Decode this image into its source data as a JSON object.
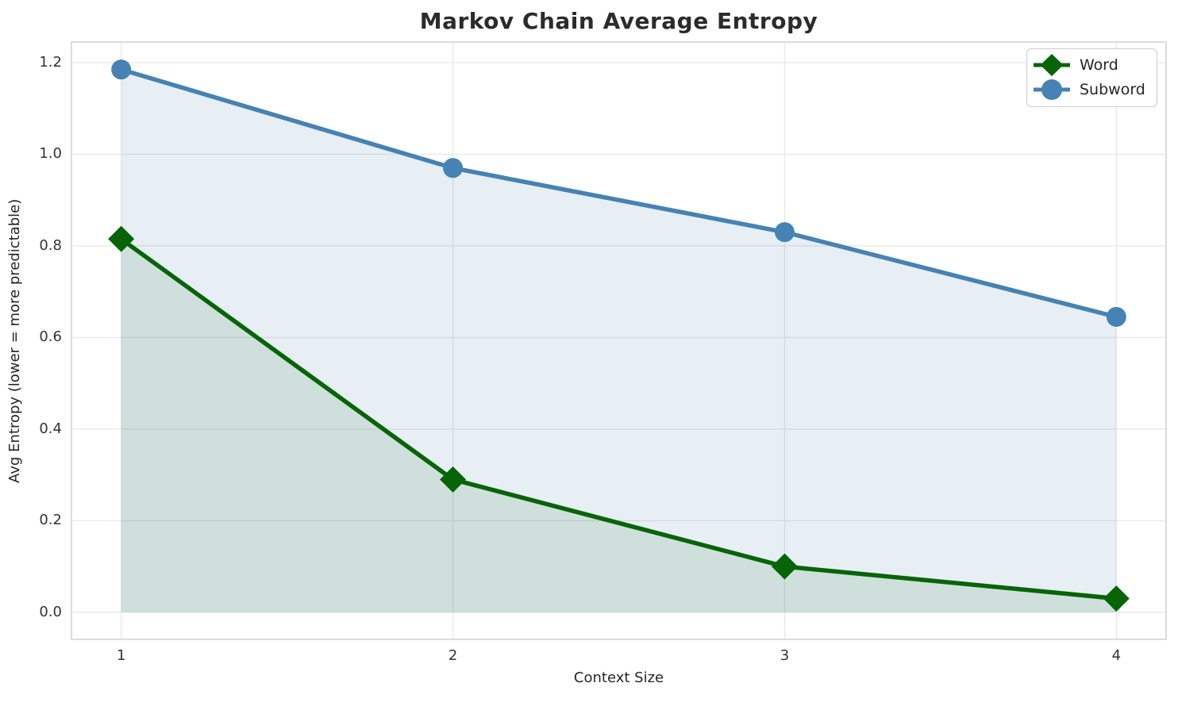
{
  "chart_data": {
    "type": "line",
    "title": "Markov Chain Average Entropy",
    "xlabel": "Context Size",
    "ylabel": "Avg Entropy (lower = more predictable)",
    "x": [
      1,
      2,
      3,
      4
    ],
    "series": [
      {
        "name": "Word",
        "values": [
          0.815,
          0.29,
          0.1,
          0.03
        ],
        "color": "#086408",
        "marker": "diamond",
        "fill_to_zero": true,
        "fill_color": "rgba(0,100,0,0.10)"
      },
      {
        "name": "Subword",
        "values": [
          1.185,
          0.97,
          0.83,
          0.645
        ],
        "color": "#4682b4",
        "marker": "circle",
        "fill_to_zero": true,
        "fill_color": "rgba(70,130,180,0.13)"
      }
    ],
    "xticks": [
      1,
      2,
      3,
      4
    ],
    "xtick_labels": [
      "1",
      "2",
      "3",
      "4"
    ],
    "yticks": [
      0,
      0.2,
      0.4,
      0.6,
      0.8,
      1.0,
      1.2
    ],
    "ytick_labels": [
      "0.0",
      "0.2",
      "0.4",
      "0.6",
      "0.8",
      "1.0",
      "1.2"
    ],
    "xlim": [
      0.85,
      4.15
    ],
    "ylim": [
      -0.059,
      1.245
    ],
    "grid": true,
    "legend_position": "upper right",
    "legend_items": [
      "Word",
      "Subword"
    ]
  },
  "style": {
    "grid_color": "#e9e9e9",
    "spine_color": "#d4d4d4",
    "background": "#ffffff"
  }
}
